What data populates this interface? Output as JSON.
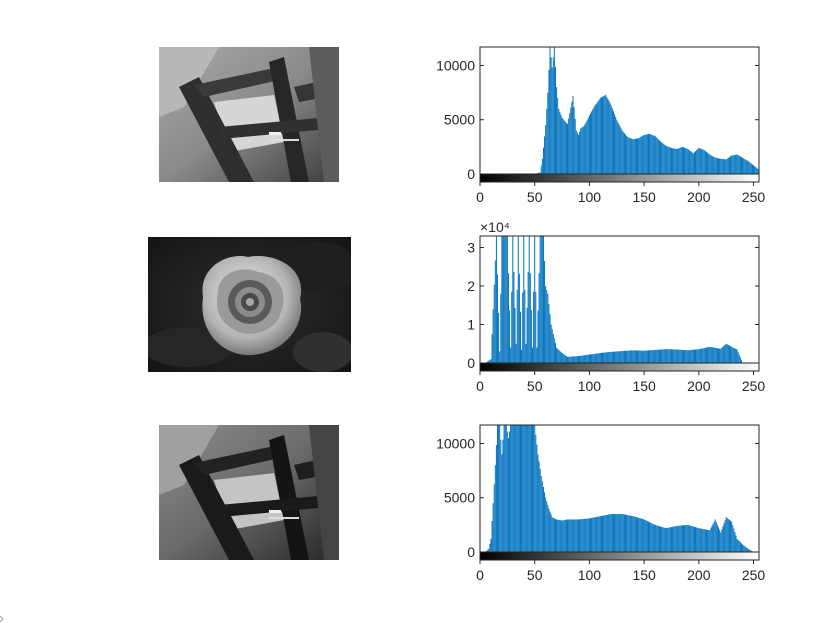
{
  "window": {
    "background": "#ffffff"
  },
  "images": [
    {
      "name": "image-1-structure-original",
      "subject": "concrete-structure",
      "tone": "grayscale"
    },
    {
      "name": "image-2-rose",
      "subject": "rose",
      "tone": "grayscale"
    },
    {
      "name": "image-3-structure-adjusted",
      "subject": "concrete-structure",
      "tone": "grayscale"
    }
  ],
  "chart_data": [
    {
      "type": "bar",
      "title": "",
      "xlabel": "",
      "ylabel": "",
      "xlim": [
        0,
        255
      ],
      "ylim": [
        0,
        11700
      ],
      "xticks": [
        "0",
        "50",
        "100",
        "150",
        "200",
        "250"
      ],
      "yticks": [
        "0",
        "5000",
        "10000"
      ],
      "y_exponent": "",
      "grid": false,
      "bar_color": "#0072bd",
      "colorbar": "grayscale 0-255",
      "series": [
        {
          "x": [
            0,
            10,
            20,
            30,
            40,
            50,
            55,
            57,
            60,
            62,
            64,
            66,
            68,
            70,
            72,
            75,
            78,
            80,
            82,
            85,
            88,
            90,
            92,
            95,
            100,
            105,
            110,
            115,
            120,
            125,
            130,
            135,
            140,
            145,
            150,
            155,
            160,
            165,
            170,
            175,
            180,
            185,
            190,
            195,
            200,
            205,
            210,
            215,
            220,
            225,
            230,
            235,
            240,
            245,
            250,
            255
          ],
          "y": [
            0,
            0,
            0,
            0,
            0,
            0,
            150,
            1400,
            4500,
            7500,
            11700,
            9800,
            11700,
            8000,
            6000,
            5200,
            4800,
            4600,
            5600,
            7200,
            4000,
            3600,
            4200,
            4400,
            5400,
            6300,
            7000,
            7300,
            6300,
            5000,
            4000,
            3400,
            3200,
            3300,
            3600,
            3700,
            3500,
            3000,
            2600,
            2400,
            2300,
            2500,
            2300,
            1900,
            2400,
            2200,
            1800,
            1500,
            1400,
            1350,
            1700,
            1800,
            1500,
            1200,
            800,
            400
          ]
        }
      ]
    },
    {
      "type": "bar",
      "title": "",
      "xlabel": "",
      "ylabel": "",
      "xlim": [
        0,
        255
      ],
      "ylim": [
        0,
        33000
      ],
      "xticks": [
        "0",
        "50",
        "100",
        "150",
        "200",
        "250"
      ],
      "yticks": [
        "0",
        "1",
        "2",
        "3"
      ],
      "y_exponent": "×10⁴",
      "grid": false,
      "bar_color": "#0072bd",
      "colorbar": "grayscale 0-255",
      "series": [
        {
          "x": [
            0,
            5,
            10,
            12,
            15,
            18,
            20,
            25,
            28,
            30,
            33,
            35,
            38,
            40,
            42,
            45,
            48,
            50,
            52,
            55,
            58,
            60,
            62,
            65,
            70,
            75,
            80,
            90,
            100,
            110,
            120,
            130,
            140,
            150,
            160,
            170,
            180,
            190,
            200,
            210,
            220,
            225,
            230,
            235,
            240,
            250,
            255
          ],
          "y": [
            0,
            0,
            1000,
            14000,
            33000,
            3000,
            33000,
            33000,
            4000,
            33000,
            5000,
            33000,
            3500,
            33000,
            5000,
            33000,
            4000,
            33000,
            4000,
            33000,
            33000,
            20000,
            18000,
            10000,
            4000,
            2600,
            1600,
            1800,
            2200,
            2600,
            2900,
            3100,
            3300,
            3200,
            3400,
            3600,
            3500,
            3300,
            3600,
            4200,
            3700,
            5000,
            4200,
            3500,
            0,
            0,
            0
          ]
        }
      ]
    },
    {
      "type": "bar",
      "title": "",
      "xlabel": "",
      "ylabel": "",
      "xlim": [
        0,
        255
      ],
      "ylim": [
        0,
        11700
      ],
      "xticks": [
        "0",
        "50",
        "100",
        "150",
        "200",
        "250"
      ],
      "yticks": [
        "0",
        "5000",
        "10000"
      ],
      "y_exponent": "",
      "grid": false,
      "bar_color": "#0072bd",
      "colorbar": "grayscale 0-255",
      "series": [
        {
          "x": [
            0,
            5,
            8,
            10,
            12,
            14,
            16,
            18,
            20,
            22,
            24,
            26,
            28,
            30,
            33,
            36,
            40,
            43,
            46,
            50,
            53,
            56,
            60,
            63,
            66,
            70,
            75,
            80,
            90,
            100,
            110,
            120,
            130,
            140,
            150,
            160,
            170,
            180,
            190,
            200,
            210,
            215,
            220,
            225,
            230,
            235,
            240,
            245,
            250,
            255
          ],
          "y": [
            0,
            0,
            300,
            1200,
            4500,
            8000,
            11700,
            11700,
            9000,
            11700,
            11700,
            10500,
            11700,
            11700,
            11700,
            11700,
            11700,
            11700,
            11700,
            11700,
            9000,
            7000,
            5000,
            4000,
            3200,
            3000,
            2900,
            3000,
            3000,
            3100,
            3300,
            3500,
            3500,
            3300,
            3000,
            2500,
            2200,
            2400,
            2500,
            2200,
            2000,
            3000,
            1800,
            3200,
            2800,
            1200,
            700,
            300,
            0,
            0
          ]
        }
      ]
    }
  ]
}
